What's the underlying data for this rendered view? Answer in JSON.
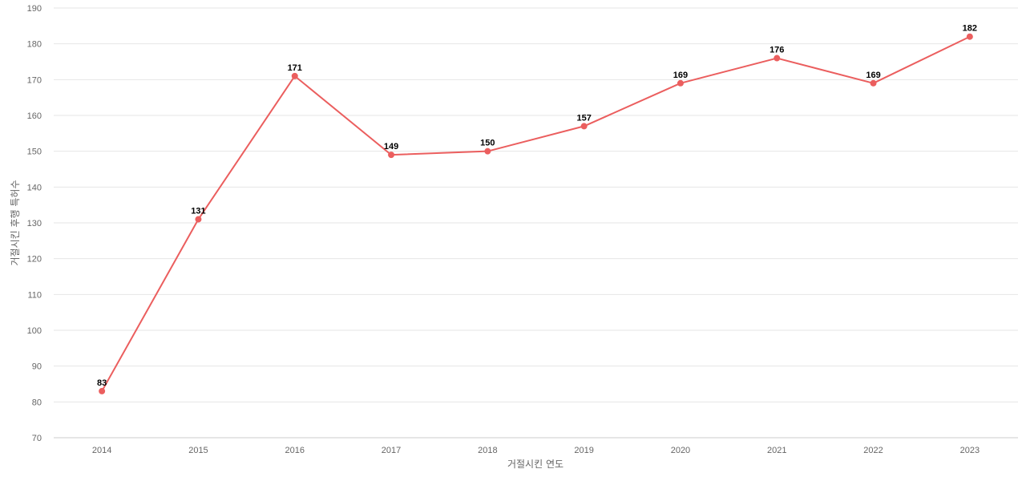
{
  "chart_data": {
    "type": "line",
    "title": "",
    "xlabel": "거절시킨 연도",
    "ylabel": "거절시킨 후행 특허수",
    "categories": [
      "2014",
      "2015",
      "2016",
      "2017",
      "2018",
      "2019",
      "2020",
      "2021",
      "2022",
      "2023"
    ],
    "series": [
      {
        "values": [
          83,
          131,
          171,
          149,
          150,
          157,
          169,
          176,
          169,
          182
        ],
        "color": "#eb5e5e"
      }
    ],
    "ylim": [
      70,
      190
    ],
    "yticks": [
      70,
      80,
      90,
      100,
      110,
      120,
      130,
      140,
      150,
      160,
      170,
      180,
      190
    ],
    "grid": true,
    "data_labels": true
  }
}
